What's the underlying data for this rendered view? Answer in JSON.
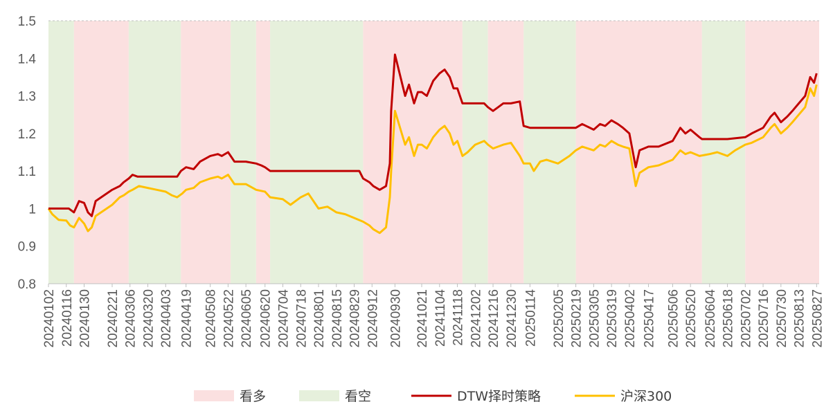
{
  "chart_data": {
    "type": "line",
    "ylim": [
      0.8,
      1.5
    ],
    "y_ticks": [
      "0.8",
      "0.9",
      "1",
      "1.1",
      "1.2",
      "1.3",
      "1.4",
      "1.5"
    ],
    "x_ticks": [
      "20240102",
      "20240116",
      "20240130",
      "20240221",
      "20240306",
      "20240320",
      "20240403",
      "20240419",
      "20240508",
      "20240522",
      "20240605",
      "20240620",
      "20240704",
      "20240718",
      "20240801",
      "20240815",
      "20240829",
      "20240912",
      "20240930",
      "20241021",
      "20241104",
      "20241118",
      "20241202",
      "20241216",
      "20241230",
      "20250114",
      "20250205",
      "20250219",
      "20250305",
      "20250319",
      "20250402",
      "20250417",
      "20250506",
      "20250520",
      "20250604",
      "20250618",
      "20250702",
      "20250716",
      "20250730",
      "20250813",
      "20250827"
    ],
    "grid": "horizontal-top-dashed",
    "legend_position": "bottom",
    "regime_colors": {
      "bull": "#fbe0e0",
      "bear": "#e6f0dc"
    },
    "regimes": [
      {
        "state": "bear",
        "start": "20240102",
        "end": "20240122"
      },
      {
        "state": "bull",
        "start": "20240122",
        "end": "20240305"
      },
      {
        "state": "bear",
        "start": "20240305",
        "end": "20240415"
      },
      {
        "state": "bull",
        "start": "20240415",
        "end": "20240524"
      },
      {
        "state": "bear",
        "start": "20240524",
        "end": "20240613"
      },
      {
        "state": "bull",
        "start": "20240613",
        "end": "20240624"
      },
      {
        "state": "bear",
        "start": "20240624",
        "end": "20240905"
      },
      {
        "state": "bull",
        "start": "20240905",
        "end": "20241122"
      },
      {
        "state": "bear",
        "start": "20241122",
        "end": "20241212"
      },
      {
        "state": "bull",
        "start": "20241212",
        "end": "20250109"
      },
      {
        "state": "bear",
        "start": "20250109",
        "end": "20250219"
      },
      {
        "state": "bull",
        "start": "20250219",
        "end": "20250529"
      },
      {
        "state": "bear",
        "start": "20250529",
        "end": "20250702"
      },
      {
        "state": "bull",
        "start": "20250702",
        "end": "20250829"
      }
    ],
    "series": [
      {
        "name": "DTW择时策略",
        "color": "#c00000",
        "points": [
          [
            "20240102",
            1.0
          ],
          [
            "20240110",
            1.0
          ],
          [
            "20240118",
            1.0
          ],
          [
            "20240122",
            0.99
          ],
          [
            "20240126",
            1.02
          ],
          [
            "20240130",
            1.015
          ],
          [
            "20240202",
            0.99
          ],
          [
            "20240205",
            0.98
          ],
          [
            "20240208",
            1.02
          ],
          [
            "20240221",
            1.05
          ],
          [
            "20240227",
            1.06
          ],
          [
            "20240301",
            1.07
          ],
          [
            "20240305",
            1.08
          ],
          [
            "20240308",
            1.09
          ],
          [
            "20240312",
            1.085
          ],
          [
            "20240320",
            1.085
          ],
          [
            "20240403",
            1.085
          ],
          [
            "20240412",
            1.085
          ],
          [
            "20240415",
            1.1
          ],
          [
            "20240419",
            1.11
          ],
          [
            "20240425",
            1.105
          ],
          [
            "20240430",
            1.125
          ],
          [
            "20240508",
            1.14
          ],
          [
            "20240514",
            1.145
          ],
          [
            "20240517",
            1.14
          ],
          [
            "20240522",
            1.15
          ],
          [
            "20240524",
            1.14
          ],
          [
            "20240527",
            1.125
          ],
          [
            "20240605",
            1.125
          ],
          [
            "20240613",
            1.12
          ],
          [
            "20240617",
            1.115
          ],
          [
            "20240620",
            1.11
          ],
          [
            "20240624",
            1.1
          ],
          [
            "20240704",
            1.1
          ],
          [
            "20240718",
            1.1
          ],
          [
            "20240801",
            1.1
          ],
          [
            "20240815",
            1.1
          ],
          [
            "20240829",
            1.1
          ],
          [
            "20240902",
            1.1
          ],
          [
            "20240905",
            1.08
          ],
          [
            "20240910",
            1.07
          ],
          [
            "20240913",
            1.06
          ],
          [
            "20240918",
            1.05
          ],
          [
            "20240923",
            1.06
          ],
          [
            "20240926",
            1.12
          ],
          [
            "20240927",
            1.26
          ],
          [
            "20240930",
            1.41
          ],
          [
            "20241008",
            1.3
          ],
          [
            "20241011",
            1.33
          ],
          [
            "20241015",
            1.28
          ],
          [
            "20241018",
            1.31
          ],
          [
            "20241021",
            1.31
          ],
          [
            "20241025",
            1.3
          ],
          [
            "20241030",
            1.34
          ],
          [
            "20241104",
            1.36
          ],
          [
            "20241108",
            1.37
          ],
          [
            "20241112",
            1.35
          ],
          [
            "20241115",
            1.32
          ],
          [
            "20241118",
            1.32
          ],
          [
            "20241122",
            1.28
          ],
          [
            "20241126",
            1.28
          ],
          [
            "20241202",
            1.28
          ],
          [
            "20241209",
            1.28
          ],
          [
            "20241212",
            1.27
          ],
          [
            "20241216",
            1.26
          ],
          [
            "20241220",
            1.27
          ],
          [
            "20241224",
            1.28
          ],
          [
            "20241230",
            1.28
          ],
          [
            "20250106",
            1.285
          ],
          [
            "20250109",
            1.22
          ],
          [
            "20250114",
            1.215
          ],
          [
            "20250122",
            1.215
          ],
          [
            "20250205",
            1.215
          ],
          [
            "20250214",
            1.215
          ],
          [
            "20250219",
            1.215
          ],
          [
            "20250224",
            1.225
          ],
          [
            "20250305",
            1.21
          ],
          [
            "20250310",
            1.225
          ],
          [
            "20250314",
            1.22
          ],
          [
            "20250319",
            1.235
          ],
          [
            "20250324",
            1.225
          ],
          [
            "20250328",
            1.215
          ],
          [
            "20250402",
            1.2
          ],
          [
            "20250407",
            1.11
          ],
          [
            "20250410",
            1.155
          ],
          [
            "20250417",
            1.165
          ],
          [
            "20250425",
            1.165
          ],
          [
            "20250506",
            1.18
          ],
          [
            "20250512",
            1.215
          ],
          [
            "20250516",
            1.2
          ],
          [
            "20250520",
            1.21
          ],
          [
            "20250527",
            1.19
          ],
          [
            "20250529",
            1.185
          ],
          [
            "20250604",
            1.185
          ],
          [
            "20250618",
            1.185
          ],
          [
            "20250702",
            1.19
          ],
          [
            "20250707",
            1.2
          ],
          [
            "20250716",
            1.215
          ],
          [
            "20250722",
            1.245
          ],
          [
            "20250725",
            1.255
          ],
          [
            "20250730",
            1.23
          ],
          [
            "20250804",
            1.245
          ],
          [
            "20250808",
            1.26
          ],
          [
            "20250813",
            1.28
          ],
          [
            "20250818",
            1.3
          ],
          [
            "20250822",
            1.35
          ],
          [
            "20250825",
            1.335
          ],
          [
            "20250827",
            1.36
          ]
        ]
      },
      {
        "name": "沪深300",
        "color": "#ffc000",
        "points": [
          [
            "20240102",
            1.0
          ],
          [
            "20240105",
            0.985
          ],
          [
            "20240110",
            0.97
          ],
          [
            "20240116",
            0.968
          ],
          [
            "20240119",
            0.955
          ],
          [
            "20240122",
            0.95
          ],
          [
            "20240126",
            0.975
          ],
          [
            "20240130",
            0.96
          ],
          [
            "20240202",
            0.94
          ],
          [
            "20240205",
            0.95
          ],
          [
            "20240208",
            0.98
          ],
          [
            "20240221",
            1.01
          ],
          [
            "20240227",
            1.03
          ],
          [
            "20240301",
            1.035
          ],
          [
            "20240305",
            1.045
          ],
          [
            "20240308",
            1.05
          ],
          [
            "20240313",
            1.06
          ],
          [
            "20240320",
            1.055
          ],
          [
            "20240327",
            1.05
          ],
          [
            "20240403",
            1.045
          ],
          [
            "20240408",
            1.035
          ],
          [
            "20240412",
            1.03
          ],
          [
            "20240416",
            1.04
          ],
          [
            "20240419",
            1.05
          ],
          [
            "20240425",
            1.055
          ],
          [
            "20240430",
            1.07
          ],
          [
            "20240508",
            1.08
          ],
          [
            "20240514",
            1.085
          ],
          [
            "20240517",
            1.08
          ],
          [
            "20240522",
            1.09
          ],
          [
            "20240527",
            1.065
          ],
          [
            "20240605",
            1.065
          ],
          [
            "20240613",
            1.05
          ],
          [
            "20240620",
            1.045
          ],
          [
            "20240624",
            1.03
          ],
          [
            "20240704",
            1.025
          ],
          [
            "20240710",
            1.01
          ],
          [
            "20240718",
            1.03
          ],
          [
            "20240724",
            1.04
          ],
          [
            "20240801",
            1.0
          ],
          [
            "20240808",
            1.005
          ],
          [
            "20240815",
            0.99
          ],
          [
            "20240822",
            0.985
          ],
          [
            "20240829",
            0.975
          ],
          [
            "20240905",
            0.965
          ],
          [
            "20240910",
            0.955
          ],
          [
            "20240913",
            0.945
          ],
          [
            "20240918",
            0.935
          ],
          [
            "20240923",
            0.95
          ],
          [
            "20240926",
            1.03
          ],
          [
            "20240927",
            1.1
          ],
          [
            "20240930",
            1.26
          ],
          [
            "20241008",
            1.17
          ],
          [
            "20241011",
            1.19
          ],
          [
            "20241015",
            1.14
          ],
          [
            "20241018",
            1.17
          ],
          [
            "20241021",
            1.17
          ],
          [
            "20241025",
            1.16
          ],
          [
            "20241030",
            1.19
          ],
          [
            "20241104",
            1.21
          ],
          [
            "20241108",
            1.22
          ],
          [
            "20241112",
            1.2
          ],
          [
            "20241115",
            1.17
          ],
          [
            "20241118",
            1.18
          ],
          [
            "20241122",
            1.14
          ],
          [
            "20241126",
            1.15
          ],
          [
            "20241202",
            1.17
          ],
          [
            "20241209",
            1.18
          ],
          [
            "20241212",
            1.17
          ],
          [
            "20241216",
            1.16
          ],
          [
            "20241220",
            1.165
          ],
          [
            "20241224",
            1.17
          ],
          [
            "20241230",
            1.175
          ],
          [
            "20250106",
            1.14
          ],
          [
            "20250109",
            1.12
          ],
          [
            "20250114",
            1.12
          ],
          [
            "20250117",
            1.1
          ],
          [
            "20250122",
            1.125
          ],
          [
            "20250127",
            1.13
          ],
          [
            "20250205",
            1.12
          ],
          [
            "20250214",
            1.14
          ],
          [
            "20250219",
            1.155
          ],
          [
            "20250224",
            1.165
          ],
          [
            "20250305",
            1.155
          ],
          [
            "20250310",
            1.17
          ],
          [
            "20250314",
            1.165
          ],
          [
            "20250319",
            1.18
          ],
          [
            "20250324",
            1.17
          ],
          [
            "20250328",
            1.165
          ],
          [
            "20250402",
            1.16
          ],
          [
            "20250407",
            1.06
          ],
          [
            "20250410",
            1.095
          ],
          [
            "20250417",
            1.11
          ],
          [
            "20250425",
            1.115
          ],
          [
            "20250506",
            1.13
          ],
          [
            "20250512",
            1.155
          ],
          [
            "20250516",
            1.145
          ],
          [
            "20250520",
            1.15
          ],
          [
            "20250527",
            1.14
          ],
          [
            "20250604",
            1.145
          ],
          [
            "20250610",
            1.15
          ],
          [
            "20250618",
            1.14
          ],
          [
            "20250624",
            1.155
          ],
          [
            "20250702",
            1.17
          ],
          [
            "20250707",
            1.175
          ],
          [
            "20250716",
            1.19
          ],
          [
            "20250722",
            1.215
          ],
          [
            "20250725",
            1.225
          ],
          [
            "20250730",
            1.2
          ],
          [
            "20250804",
            1.215
          ],
          [
            "20250808",
            1.23
          ],
          [
            "20250813",
            1.25
          ],
          [
            "20250818",
            1.27
          ],
          [
            "20250822",
            1.32
          ],
          [
            "20250825",
            1.3
          ],
          [
            "20250827",
            1.33
          ]
        ]
      }
    ],
    "legend": [
      {
        "label": "看多",
        "kind": "patch",
        "color": "#fbe0e0"
      },
      {
        "label": "看空",
        "kind": "patch",
        "color": "#e6f0dc"
      },
      {
        "label": "DTW择时策略",
        "kind": "line",
        "color": "#c00000"
      },
      {
        "label": "沪深300",
        "kind": "line",
        "color": "#ffc000"
      }
    ]
  }
}
